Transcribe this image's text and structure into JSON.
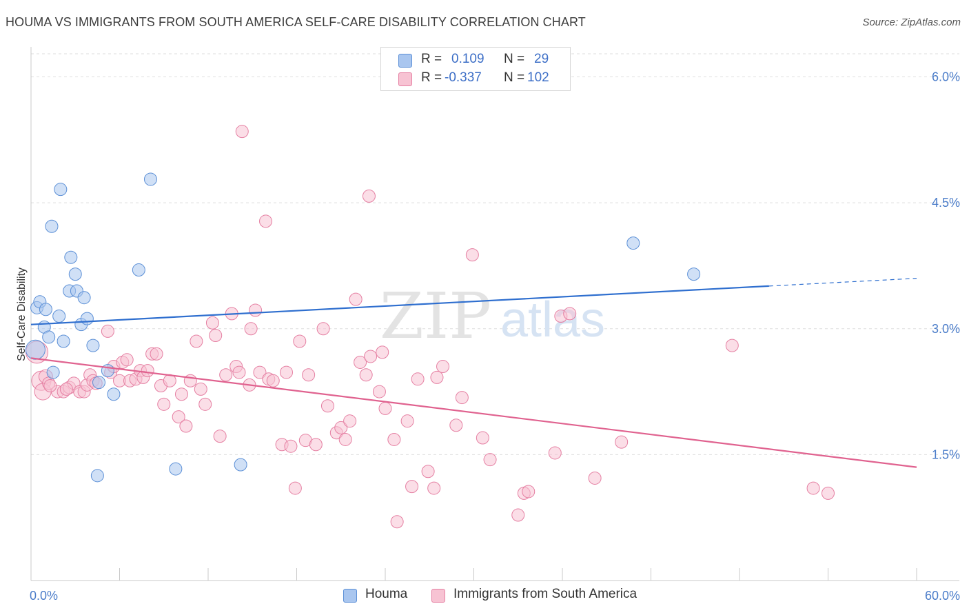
{
  "title": "HOUMA VS IMMIGRANTS FROM SOUTH AMERICA SELF-CARE DISABILITY CORRELATION CHART",
  "source": "Source: ZipAtlas.com",
  "watermark": {
    "zip": "ZIP",
    "atlas": "atlas"
  },
  "legend": {
    "rows": [
      {
        "r_label": "R =",
        "r_value": "0.109",
        "n_label": "N =",
        "n_value": "29",
        "color": "#a9c6ef",
        "border": "#5b8fd6"
      },
      {
        "r_label": "R =",
        "r_value": "-0.337",
        "n_label": "N =",
        "n_value": "102",
        "color": "#f7c3d3",
        "border": "#e57fa2"
      }
    ]
  },
  "bottom_legend": {
    "houma": "Houma",
    "immigrants": "Immigrants from South America"
  },
  "chart_data": {
    "type": "scatter",
    "title": "HOUMA VS IMMIGRANTS FROM SOUTH AMERICA SELF-CARE DISABILITY CORRELATION CHART",
    "xlabel": "",
    "ylabel": "Self-Care Disability",
    "xlim": [
      0,
      60
    ],
    "ylim": [
      0,
      6.3
    ],
    "x_tick_labels": [
      "0.0%",
      "60.0%"
    ],
    "y_ticks": [
      1.5,
      3.0,
      4.5,
      6.0
    ],
    "y_tick_labels": [
      "1.5%",
      "3.0%",
      "4.5%",
      "6.0%"
    ],
    "grid": true,
    "series": [
      {
        "name": "Houma",
        "color": "#a9c6ef",
        "stroke": "#5b8fd6",
        "trend": {
          "x0": 0,
          "y0": 3.05,
          "x1": 60,
          "y1": 3.6,
          "solid_until": 50
        },
        "points": [
          [
            0.3,
            2.75,
            14
          ],
          [
            0.4,
            3.25,
            9
          ],
          [
            0.6,
            3.32,
            9
          ],
          [
            0.9,
            3.02,
            9
          ],
          [
            1.0,
            3.23,
            9
          ],
          [
            1.2,
            2.9,
            9
          ],
          [
            1.4,
            4.22,
            9
          ],
          [
            1.5,
            2.48,
            9
          ],
          [
            1.9,
            3.15,
            9
          ],
          [
            2.0,
            4.66,
            9
          ],
          [
            2.2,
            2.85,
            9
          ],
          [
            2.7,
            3.85,
            9
          ],
          [
            2.6,
            3.45,
            9
          ],
          [
            3.1,
            3.45,
            9
          ],
          [
            3.0,
            3.65,
            9
          ],
          [
            3.4,
            3.05,
            9
          ],
          [
            3.6,
            3.37,
            9
          ],
          [
            3.8,
            3.12,
            9
          ],
          [
            4.2,
            2.8,
            9
          ],
          [
            4.5,
            1.25,
            9
          ],
          [
            4.6,
            2.36,
            9
          ],
          [
            5.2,
            2.5,
            9
          ],
          [
            5.6,
            2.22,
            9
          ],
          [
            7.3,
            3.7,
            9
          ],
          [
            8.1,
            4.78,
            9
          ],
          [
            9.8,
            1.33,
            9
          ],
          [
            14.2,
            1.38,
            9
          ],
          [
            40.8,
            4.02,
            9
          ],
          [
            44.9,
            3.65,
            9
          ]
        ]
      },
      {
        "name": "Immigrants from South America",
        "color": "#f7c3d3",
        "stroke": "#e57fa2",
        "trend": {
          "x0": 0,
          "y0": 2.65,
          "x1": 60,
          "y1": 1.35
        },
        "points": [
          [
            0.4,
            2.72,
            16
          ],
          [
            0.7,
            2.38,
            14
          ],
          [
            0.8,
            2.25,
            12
          ],
          [
            1.0,
            2.43,
            10
          ],
          [
            1.2,
            2.35,
            9
          ],
          [
            1.8,
            2.25,
            9
          ],
          [
            2.2,
            2.25,
            9
          ],
          [
            2.6,
            2.3,
            9
          ],
          [
            2.9,
            2.35,
            9
          ],
          [
            3.3,
            2.25,
            9
          ],
          [
            3.6,
            2.25,
            9
          ],
          [
            3.8,
            2.33,
            9
          ],
          [
            4.0,
            2.45,
            9
          ],
          [
            4.2,
            2.38,
            9
          ],
          [
            4.4,
            2.35,
            9
          ],
          [
            5.2,
            2.97,
            9
          ],
          [
            5.4,
            2.48,
            9
          ],
          [
            5.6,
            2.55,
            9
          ],
          [
            6.0,
            2.38,
            9
          ],
          [
            6.2,
            2.6,
            9
          ],
          [
            6.5,
            2.63,
            9
          ],
          [
            6.7,
            2.38,
            9
          ],
          [
            7.1,
            2.4,
            9
          ],
          [
            7.4,
            2.5,
            9
          ],
          [
            7.6,
            2.42,
            9
          ],
          [
            7.9,
            2.5,
            9
          ],
          [
            8.2,
            2.7,
            9
          ],
          [
            8.5,
            2.7,
            9
          ],
          [
            8.8,
            2.32,
            9
          ],
          [
            9.0,
            2.1,
            9
          ],
          [
            9.4,
            2.38,
            9
          ],
          [
            10.0,
            1.95,
            9
          ],
          [
            10.2,
            2.22,
            9
          ],
          [
            10.5,
            1.84,
            9
          ],
          [
            10.8,
            2.38,
            9
          ],
          [
            11.2,
            2.85,
            9
          ],
          [
            11.5,
            2.28,
            9
          ],
          [
            11.8,
            2.1,
            9
          ],
          [
            12.3,
            3.07,
            9
          ],
          [
            12.5,
            2.92,
            9
          ],
          [
            12.8,
            1.72,
            9
          ],
          [
            13.2,
            2.45,
            9
          ],
          [
            13.6,
            3.18,
            9
          ],
          [
            13.9,
            2.55,
            9
          ],
          [
            14.1,
            2.48,
            9
          ],
          [
            14.3,
            5.35,
            9
          ],
          [
            14.8,
            2.33,
            9
          ],
          [
            14.9,
            3.0,
            9
          ],
          [
            15.2,
            3.22,
            9
          ],
          [
            15.5,
            2.48,
            9
          ],
          [
            15.9,
            4.28,
            9
          ],
          [
            16.1,
            2.4,
            9
          ],
          [
            16.4,
            2.38,
            9
          ],
          [
            17.0,
            1.62,
            9
          ],
          [
            17.3,
            2.48,
            9
          ],
          [
            17.6,
            1.6,
            9
          ],
          [
            17.9,
            1.1,
            9
          ],
          [
            18.2,
            2.85,
            9
          ],
          [
            18.6,
            1.67,
            9
          ],
          [
            18.8,
            2.45,
            9
          ],
          [
            19.3,
            1.62,
            9
          ],
          [
            19.8,
            3.0,
            9
          ],
          [
            20.1,
            2.08,
            9
          ],
          [
            20.7,
            1.76,
            9
          ],
          [
            21.0,
            1.82,
            9
          ],
          [
            21.3,
            1.68,
            9
          ],
          [
            21.6,
            1.9,
            9
          ],
          [
            22.0,
            3.35,
            9
          ],
          [
            22.3,
            2.6,
            9
          ],
          [
            22.7,
            2.45,
            9
          ],
          [
            22.9,
            4.58,
            9
          ],
          [
            23.0,
            2.67,
            9
          ],
          [
            23.6,
            2.25,
            9
          ],
          [
            23.8,
            2.72,
            9
          ],
          [
            24.0,
            2.05,
            9
          ],
          [
            24.6,
            1.68,
            9
          ],
          [
            24.8,
            0.7,
            9
          ],
          [
            25.5,
            1.9,
            9
          ],
          [
            25.8,
            1.12,
            9
          ],
          [
            26.2,
            2.4,
            9
          ],
          [
            26.9,
            1.3,
            9
          ],
          [
            27.3,
            1.1,
            9
          ],
          [
            27.5,
            2.42,
            9
          ],
          [
            27.9,
            2.55,
            9
          ],
          [
            28.8,
            1.85,
            9
          ],
          [
            29.2,
            2.18,
            9
          ],
          [
            29.9,
            3.88,
            9
          ],
          [
            30.6,
            1.7,
            9
          ],
          [
            31.1,
            1.44,
            9
          ],
          [
            33.0,
            0.78,
            9
          ],
          [
            33.4,
            1.04,
            9
          ],
          [
            33.7,
            1.06,
            9
          ],
          [
            35.5,
            1.52,
            9
          ],
          [
            35.9,
            3.15,
            9
          ],
          [
            36.5,
            3.18,
            9
          ],
          [
            38.2,
            1.22,
            9
          ],
          [
            40.0,
            1.65,
            9
          ],
          [
            47.5,
            2.8,
            9
          ],
          [
            53.0,
            1.1,
            9
          ],
          [
            54.0,
            1.04,
            9
          ],
          [
            1.3,
            2.32,
            9
          ],
          [
            2.4,
            2.28,
            9
          ]
        ]
      }
    ]
  }
}
